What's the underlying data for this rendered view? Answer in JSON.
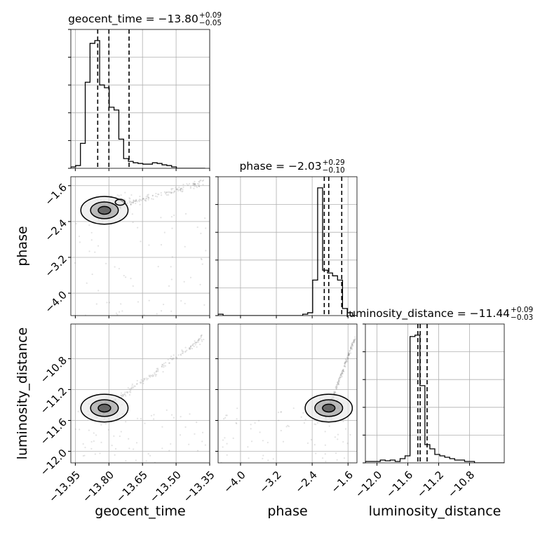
{
  "chart_data": {
    "type": "corner",
    "parameters": [
      "geocent_time",
      "phase",
      "luminosity_distance"
    ],
    "titles": [
      {
        "label": "geocent_time = −13.80",
        "sup": "+0.09",
        "sub": "−0.05"
      },
      {
        "label": "phase = −2.03",
        "sup": "+0.29",
        "sub": "−0.10"
      },
      {
        "label": "luminosity_distance = −11.44",
        "sup": "+0.09",
        "sub": "−0.03"
      }
    ],
    "ranges": {
      "geocent_time": [
        -13.97,
        -13.35
      ],
      "phase": [
        -4.5,
        -1.4
      ],
      "luminosity_distance": [
        -12.15,
        -10.35
      ]
    },
    "ticks": {
      "geocent_time": [
        -13.95,
        -13.8,
        -13.65,
        -13.5,
        -13.35
      ],
      "phase": [
        -4.0,
        -3.2,
        -2.4,
        -1.6
      ],
      "luminosity_distance": [
        -12.0,
        -11.6,
        -11.2,
        -10.8
      ]
    },
    "tick_labels": {
      "geocent_time": [
        "−13.95",
        "−13.80",
        "−13.65",
        "−13.50",
        "−13.35"
      ],
      "phase": [
        "−4.0",
        "−3.2",
        "−2.4",
        "−1.6"
      ],
      "luminosity_distance": [
        "−12.0",
        "−11.6",
        "−11.2",
        "−10.8"
      ]
    },
    "quantiles": {
      "geocent_time": [
        -13.85,
        -13.8,
        -13.71
      ],
      "phase": [
        -2.13,
        -2.03,
        -1.74
      ],
      "luminosity_distance": [
        -11.47,
        -11.44,
        -11.35
      ]
    },
    "histograms": {
      "geocent_time": {
        "bins": [
          -13.97,
          -13.9486,
          -13.9271,
          -13.9057,
          -13.8843,
          -13.8628,
          -13.8414,
          -13.82,
          -13.7986,
          -13.7771,
          -13.7557,
          -13.7343,
          -13.7128,
          -13.6914,
          -13.67,
          -13.6486,
          -13.6271,
          -13.6057,
          -13.5843,
          -13.5628,
          -13.5414,
          -13.52,
          -13.4986,
          -13.4771,
          -13.4557,
          -13.4343,
          -13.4128,
          -13.3914,
          -13.37
        ],
        "counts": [
          0.01,
          0.02,
          0.18,
          0.62,
          0.9,
          0.92,
          0.6,
          0.58,
          0.44,
          0.42,
          0.21,
          0.07,
          0.05,
          0.04,
          0.035,
          0.03,
          0.03,
          0.04,
          0.035,
          0.025,
          0.02,
          0.01,
          0.0,
          0.0,
          0.0,
          0.0,
          0.0,
          0.0
        ]
      },
      "phase": {
        "bins": [
          -4.5,
          -4.3889,
          -4.2778,
          -4.1667,
          -4.0556,
          -3.9444,
          -3.8333,
          -3.7222,
          -3.6111,
          -3.5,
          -3.3889,
          -3.2778,
          -3.1667,
          -3.0556,
          -2.9444,
          -2.8333,
          -2.7222,
          -2.6111,
          -2.5,
          -2.3889,
          -2.2778,
          -2.1667,
          -2.0556,
          -1.9444,
          -1.8333,
          -1.7222,
          -1.6111,
          -1.5,
          -1.3889
        ],
        "counts": [
          0.01,
          0.0,
          0.0,
          0.0,
          0.0,
          0.0,
          0.0,
          0.0,
          0.0,
          0.0,
          0.0,
          0.0,
          0.0,
          0.0,
          0.0,
          0.0,
          0.0,
          0.01,
          0.02,
          0.25,
          0.9,
          0.32,
          0.3,
          0.28,
          0.25,
          0.05,
          0.02,
          0.0
        ]
      },
      "luminosity_distance": {
        "bins": [
          -12.15,
          -12.0857,
          -12.0214,
          -11.9571,
          -11.8929,
          -11.8286,
          -11.7643,
          -11.7,
          -11.6357,
          -11.5714,
          -11.5071,
          -11.4429,
          -11.3786,
          -11.3143,
          -11.25,
          -11.1857,
          -11.1214,
          -11.0571,
          -10.9929,
          -10.9286,
          -10.8643,
          -10.8,
          -10.7357,
          -10.6714,
          -10.6071,
          -10.5429,
          -10.4786,
          -10.4143,
          -10.35
        ],
        "counts": [
          0.01,
          0.01,
          0.01,
          0.02,
          0.015,
          0.02,
          0.01,
          0.03,
          0.05,
          0.9,
          0.91,
          0.55,
          0.13,
          0.1,
          0.06,
          0.05,
          0.04,
          0.03,
          0.02,
          0.02,
          0.01,
          0.01,
          0.0,
          0.0,
          0.0,
          0.0,
          0.0,
          0.0
        ]
      }
    },
    "contours": {
      "phase_vs_geocent_time": {
        "peaks": [
          [
            -13.82,
            -2.15
          ],
          [
            -13.75,
            -1.97
          ]
        ],
        "levels": [
          "outer",
          "middle",
          "inner"
        ]
      },
      "luminosity_distance_vs_geocent_time": {
        "peaks": [
          [
            -13.82,
            -11.44
          ]
        ],
        "levels": [
          "outer",
          "middle",
          "inner"
        ]
      },
      "luminosity_distance_vs_phase": {
        "peaks": [
          [
            -2.03,
            -11.44
          ]
        ],
        "levels": [
          "outer",
          "middle",
          "inner"
        ]
      }
    },
    "grid": true,
    "colors": {
      "line": "#000000",
      "grid": "#b0b0b0",
      "points": "#808080"
    }
  }
}
